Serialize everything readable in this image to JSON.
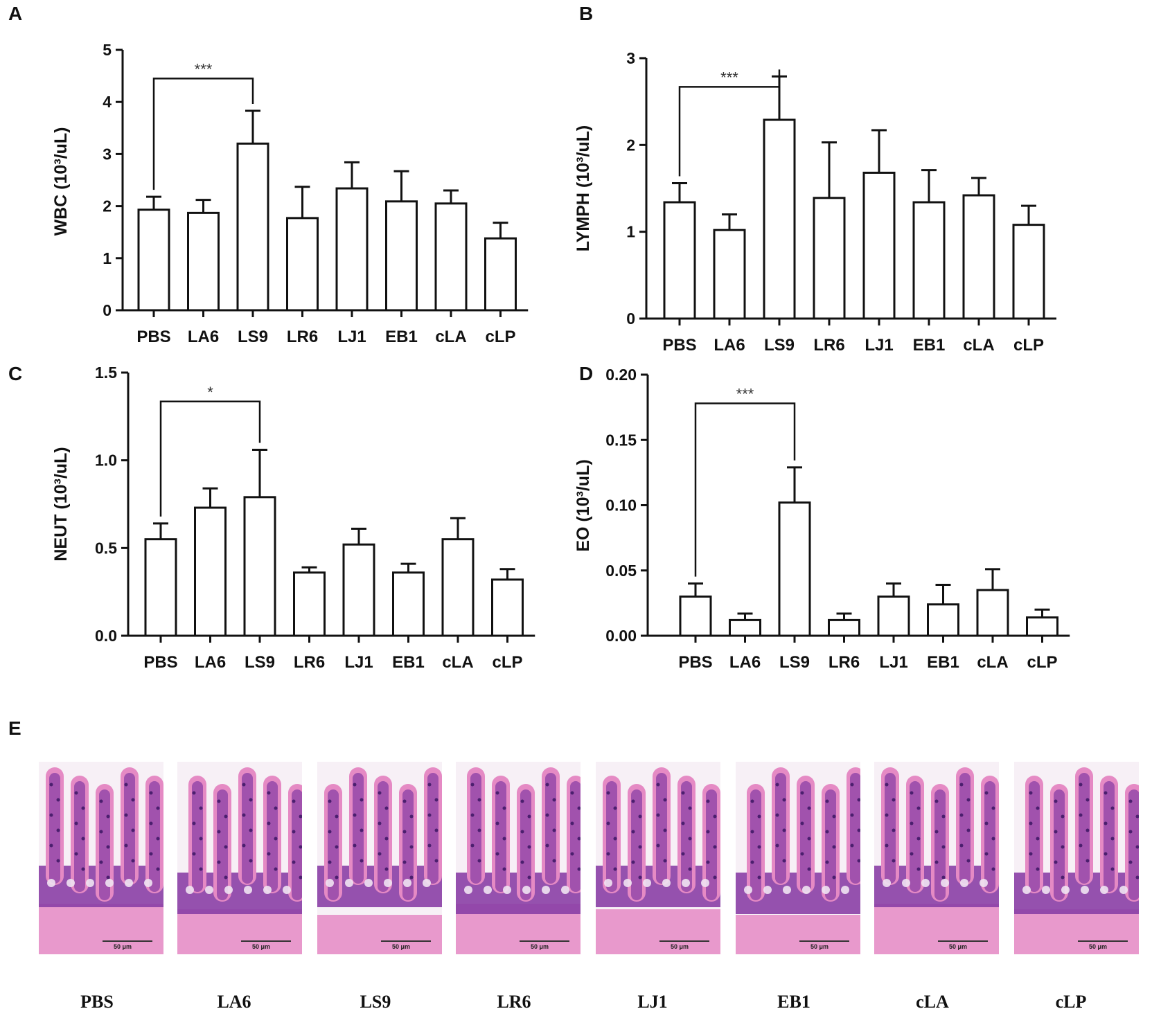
{
  "panel_letters": [
    "A",
    "B",
    "C",
    "D",
    "E"
  ],
  "chart_data": [
    {
      "panel": "A",
      "type": "bar",
      "title": "",
      "ylabel": "WBC (10³/uL)",
      "xlabel": "",
      "categories": [
        "PBS",
        "LA6",
        "LS9",
        "LR6",
        "LJ1",
        "EB1",
        "cLA",
        "cLP"
      ],
      "values": [
        1.93,
        1.87,
        3.2,
        1.77,
        2.34,
        2.09,
        2.05,
        1.38
      ],
      "errors": [
        0.25,
        0.25,
        0.63,
        0.6,
        0.5,
        0.58,
        0.25,
        0.3
      ],
      "ylim": [
        0,
        5
      ],
      "yticks": [
        "0",
        "1",
        "2",
        "3",
        "4",
        "5"
      ],
      "significance": {
        "from": "PBS",
        "to": "LS9",
        "label": "***"
      }
    },
    {
      "panel": "B",
      "type": "bar",
      "title": "",
      "ylabel": "LYMPH (10³/uL)",
      "xlabel": "",
      "categories": [
        "PBS",
        "LA6",
        "LS9",
        "LR6",
        "LJ1",
        "EB1",
        "cLA",
        "cLP"
      ],
      "values": [
        1.34,
        1.02,
        2.29,
        1.39,
        1.68,
        1.34,
        1.42,
        1.08
      ],
      "errors": [
        0.22,
        0.18,
        0.5,
        0.64,
        0.49,
        0.37,
        0.2,
        0.22
      ],
      "ylim": [
        0,
        3
      ],
      "yticks": [
        "0",
        "1",
        "2",
        "3"
      ],
      "significance": {
        "from": "PBS",
        "to": "LS9",
        "label": "***"
      }
    },
    {
      "panel": "C",
      "type": "bar",
      "title": "",
      "ylabel": "NEUT (10³/uL)",
      "xlabel": "",
      "categories": [
        "PBS",
        "LA6",
        "LS9",
        "LR6",
        "LJ1",
        "EB1",
        "cLA",
        "cLP"
      ],
      "values": [
        0.55,
        0.73,
        0.79,
        0.36,
        0.52,
        0.36,
        0.55,
        0.32
      ],
      "errors": [
        0.09,
        0.11,
        0.27,
        0.03,
        0.09,
        0.05,
        0.12,
        0.06
      ],
      "ylim": [
        0,
        1.5
      ],
      "yticks": [
        "0.0",
        "0.5",
        "1.0",
        "1.5"
      ],
      "significance": {
        "from": "PBS",
        "to": "LS9",
        "label": "*"
      }
    },
    {
      "panel": "D",
      "type": "bar",
      "title": "",
      "ylabel": "EO (10³/uL)",
      "xlabel": "",
      "categories": [
        "PBS",
        "LA6",
        "LS9",
        "LR6",
        "LJ1",
        "EB1",
        "cLA",
        "cLP"
      ],
      "values": [
        0.03,
        0.012,
        0.102,
        0.012,
        0.03,
        0.024,
        0.035,
        0.014
      ],
      "errors": [
        0.01,
        0.005,
        0.027,
        0.005,
        0.01,
        0.015,
        0.016,
        0.006
      ],
      "ylim": [
        0,
        0.2
      ],
      "yticks": [
        "0.00",
        "0.05",
        "0.10",
        "0.15",
        "0.20"
      ],
      "significance": {
        "from": "PBS",
        "to": "LS9",
        "label": "***"
      }
    }
  ],
  "histology": {
    "scale_label": "50 μm",
    "labels": [
      "PBS",
      "LA6",
      "LS9",
      "LR6",
      "LJ1",
      "EB1",
      "cLA",
      "cLP"
    ]
  },
  "colors": {
    "axis": "#111111",
    "bar_fill": "#ffffff",
    "tissue_pink": "#e58ac4",
    "tissue_purple": "#8a3fa6",
    "tissue_dark": "#4b1f6e",
    "lumen": "#f7f0f6"
  }
}
